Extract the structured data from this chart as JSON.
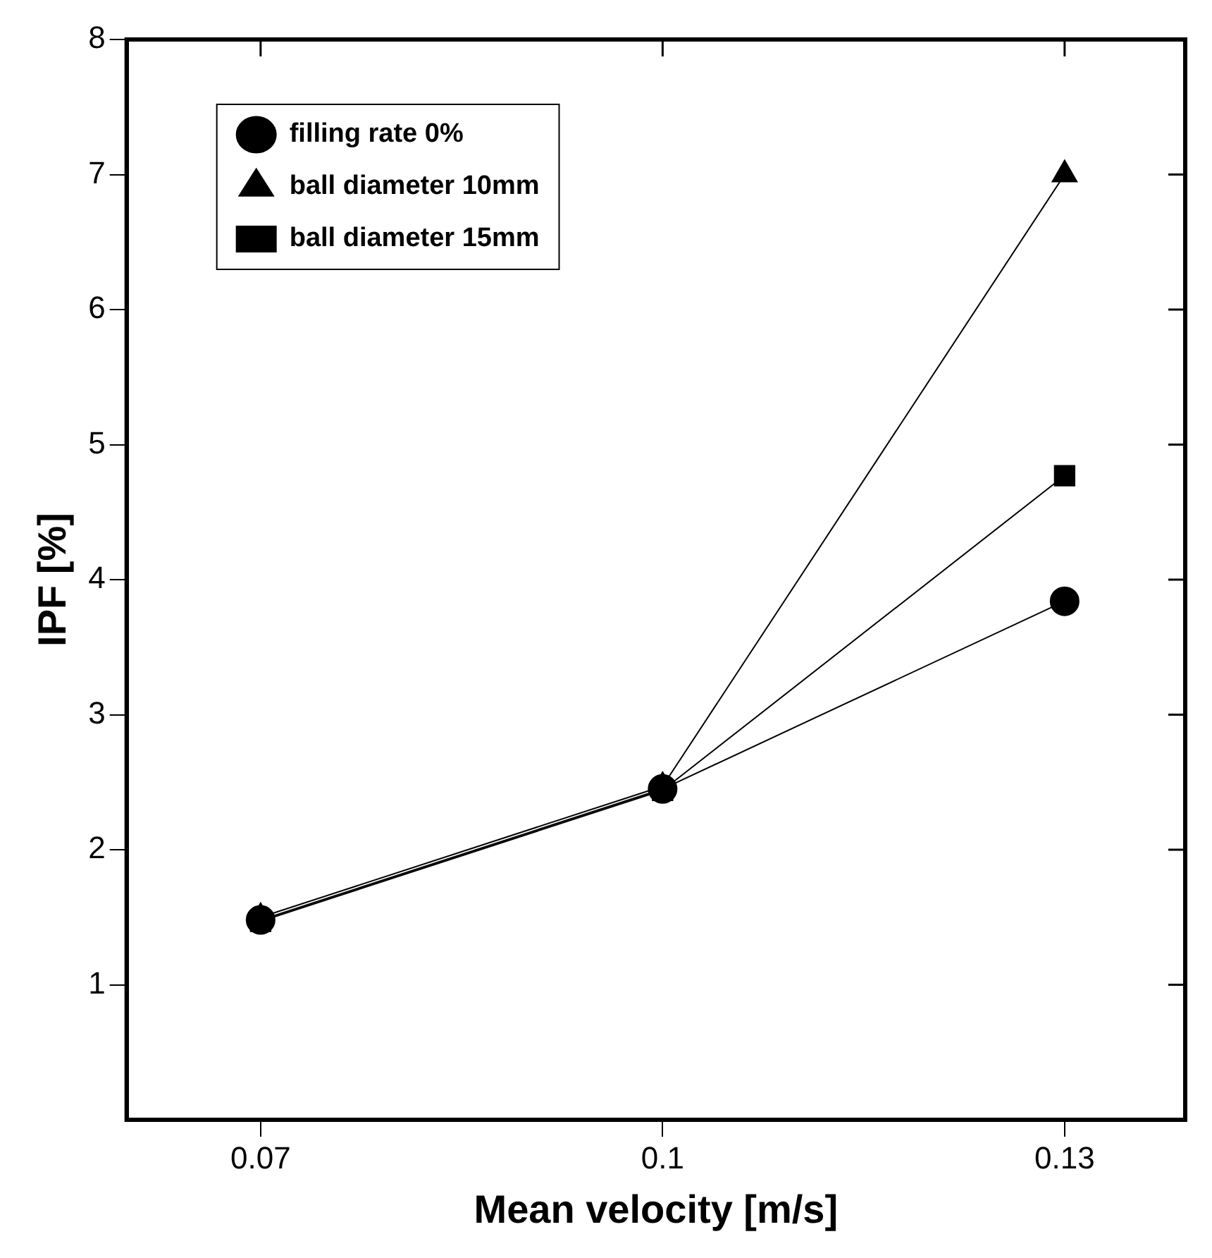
{
  "chart_data": {
    "type": "line",
    "xlabel": "Mean velocity [m/s]",
    "ylabel": "IPF [%]",
    "x": [
      0.07,
      0.1,
      0.13
    ],
    "series": [
      {
        "name": "filling rate 0%",
        "color": "#000000",
        "marker": "circle",
        "values": [
          1.48,
          2.45,
          3.84
        ]
      },
      {
        "name": "ball diameter 10mm",
        "color": "#000000",
        "marker": "triangle",
        "values": [
          1.5,
          2.47,
          7.0
        ]
      },
      {
        "name": "ball diameter 15mm",
        "color": "#000000",
        "marker": "square",
        "values": [
          1.47,
          2.44,
          4.77
        ]
      }
    ],
    "xlim": [
      0.06,
      0.139
    ],
    "xticks": [
      0.07,
      0.1,
      0.13
    ],
    "ylim": [
      0,
      8
    ],
    "yticks": [
      1,
      2,
      3,
      4,
      5,
      6,
      7,
      8
    ],
    "grid": false,
    "legend": "top left",
    "line_style": "solid"
  }
}
